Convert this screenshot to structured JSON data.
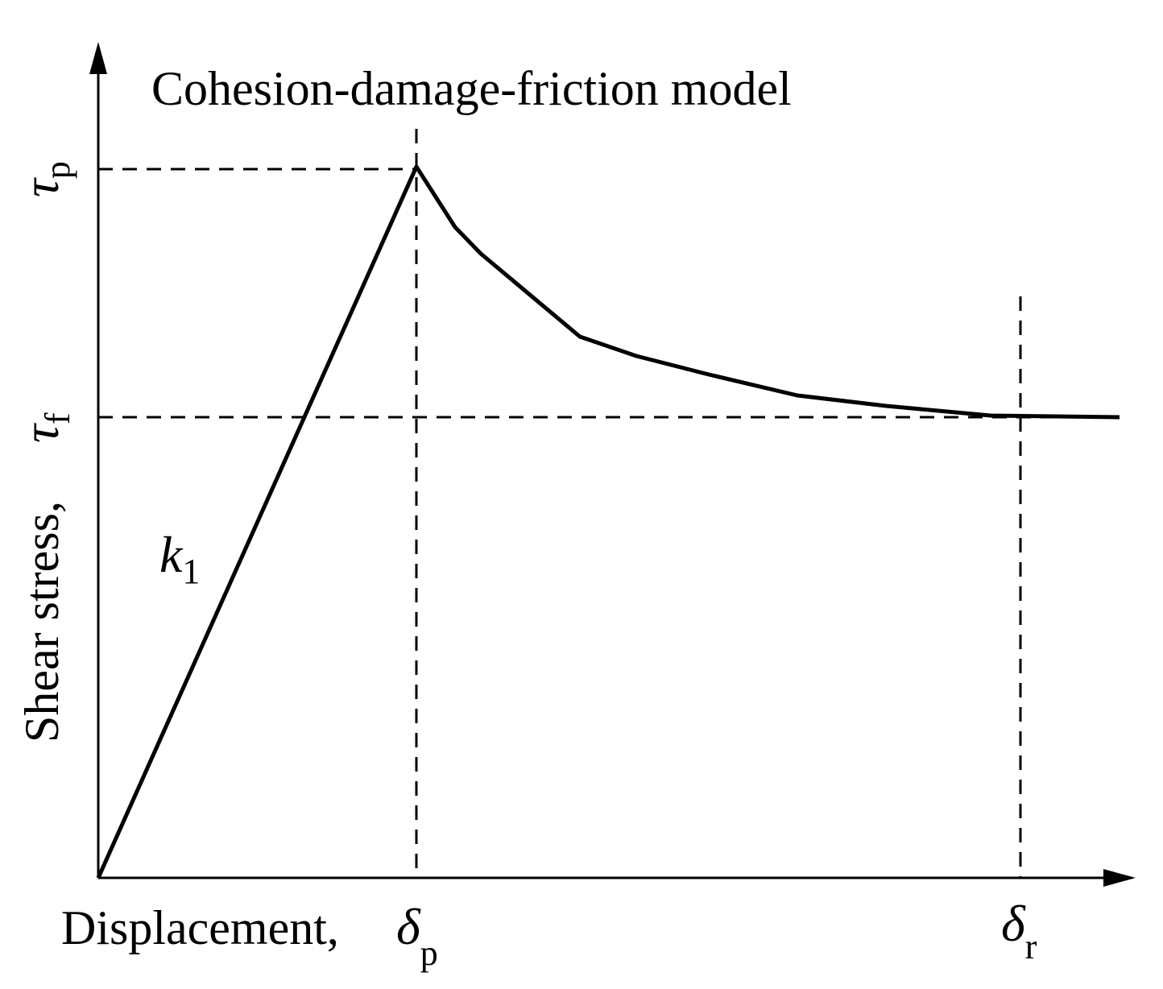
{
  "title": "Cohesion-damage-friction model",
  "y_axis": {
    "label": "Shear stress,",
    "ticks": [
      {
        "symbol": "τ",
        "subscript": "p"
      },
      {
        "symbol": "τ",
        "subscript": "f"
      }
    ]
  },
  "x_axis": {
    "label": "Displacement,",
    "ticks": [
      {
        "symbol": "δ",
        "subscript": "p"
      },
      {
        "symbol": "δ",
        "subscript": "r"
      }
    ]
  },
  "annotation": {
    "symbol": "k",
    "subscript": "1"
  }
}
